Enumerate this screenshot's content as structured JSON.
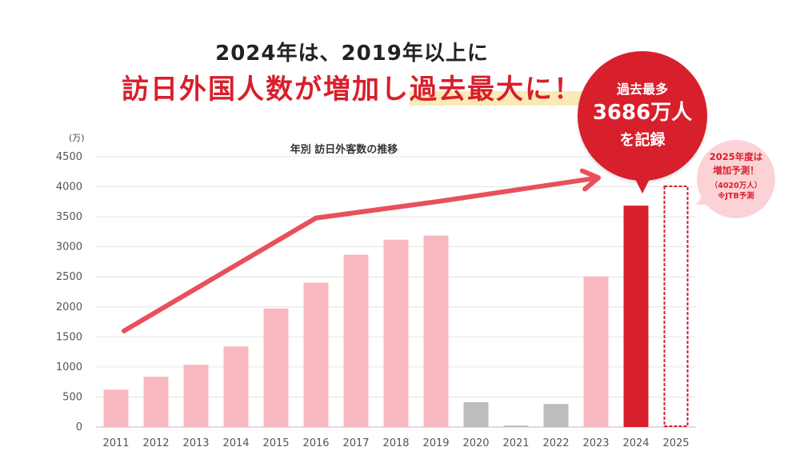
{
  "headline": {
    "line1": "2024年は、2019年以上に",
    "line2_main": "訪日外国人数が増加し",
    "line2_highlight": "過去最大に！"
  },
  "callout": {
    "line1": "過去最多",
    "line2": "3686万人",
    "line3": "を記録"
  },
  "forecast_note": {
    "line1": "2025年度は",
    "line2": "増加予測！",
    "line3": "（4020万人）",
    "line4": "※JTB予測"
  },
  "colors": {
    "bar": "#f7b8c0",
    "covid_bar": "#bdbdbd",
    "highlight_bar": "#d81f2c",
    "trend_arrow": "#e8505b",
    "forecast_outline": "#d81f2c"
  },
  "chart_data": {
    "type": "bar",
    "title": "年別 訪日外客数の推移",
    "unit_label": "(万)",
    "xlabel": "",
    "ylabel": "",
    "ylim": [
      0,
      4500
    ],
    "yticks": [
      "0",
      "500",
      "1000",
      "1500",
      "2000",
      "2500",
      "3000",
      "3500",
      "4000",
      "4500"
    ],
    "grid": true,
    "categories": [
      "2011",
      "2012",
      "2013",
      "2014",
      "2015",
      "2016",
      "2017",
      "2018",
      "2019",
      "2020",
      "2021",
      "2022",
      "2023",
      "2024",
      "2025"
    ],
    "values": [
      622,
      836,
      1036,
      1341,
      1974,
      2404,
      2869,
      3119,
      3188,
      412,
      25,
      383,
      2507,
      3686,
      4020
    ],
    "bar_styles": [
      "normal",
      "normal",
      "normal",
      "normal",
      "normal",
      "normal",
      "normal",
      "normal",
      "normal",
      "covid",
      "covid",
      "covid",
      "normal",
      "highlight",
      "forecast"
    ],
    "trend_arrow": {
      "points": [
        [
          "2011",
          1600
        ],
        [
          "2016",
          3480
        ],
        [
          "2019",
          3750
        ],
        [
          "2024",
          4150
        ]
      ]
    }
  }
}
